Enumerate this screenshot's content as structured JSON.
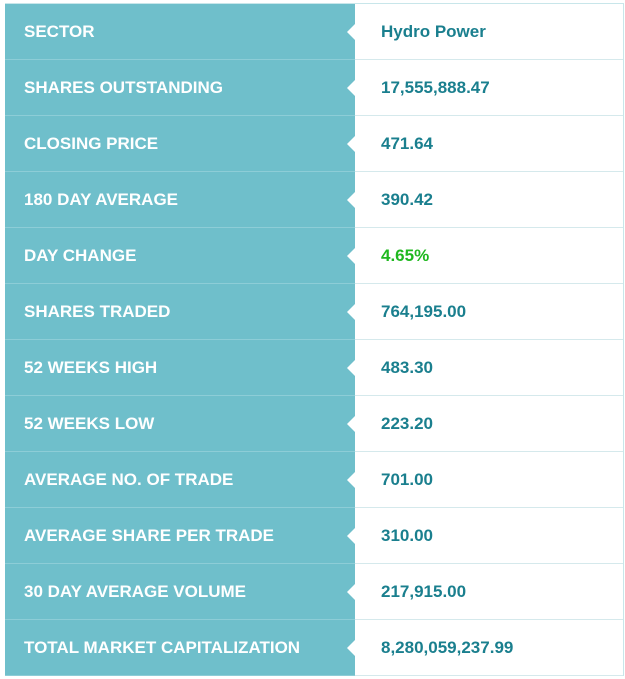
{
  "rows": [
    {
      "label": "SECTOR",
      "value": "Hydro Power"
    },
    {
      "label": "SHARES OUTSTANDING",
      "value": "17,555,888.47"
    },
    {
      "label": "CLOSING PRICE",
      "value": "471.64"
    },
    {
      "label": "180 DAY AVERAGE",
      "value": "390.42"
    },
    {
      "label": "DAY CHANGE",
      "value": "4.65%",
      "value_color": "#1fb81f"
    },
    {
      "label": "SHARES TRADED",
      "value": "764,195.00"
    },
    {
      "label": "52 WEEKS HIGH",
      "value": "483.30"
    },
    {
      "label": "52 WEEKS LOW",
      "value": "223.20"
    },
    {
      "label": "AVERAGE NO. OF TRADE",
      "value": "701.00"
    },
    {
      "label": "AVERAGE SHARE PER TRADE",
      "value": "310.00"
    },
    {
      "label": "30 DAY AVERAGE VOLUME",
      "value": "217,915.00"
    },
    {
      "label": "TOTAL MARKET CAPITALIZATION",
      "value": "8,280,059,237.99"
    }
  ],
  "colors": {
    "label_background": "#6fbfcb",
    "label_text": "#ffffff",
    "value_text": "#1a7f8e",
    "positive_change": "#1fb81f"
  }
}
